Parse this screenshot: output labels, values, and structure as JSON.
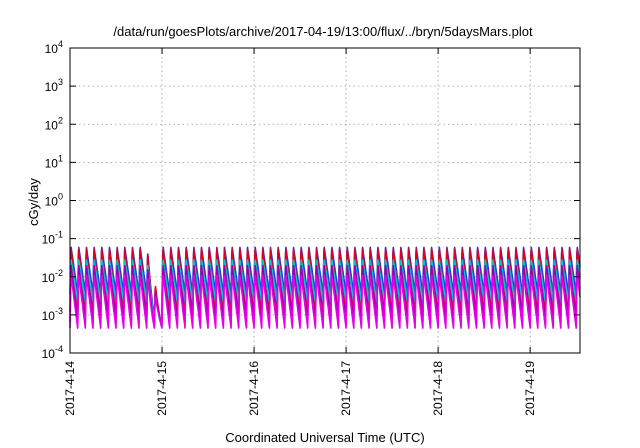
{
  "chart_data": {
    "type": "line",
    "title": "/data/run/goesPlots/archive/2017-04-19/13:00/flux/../bryn/5daysMars.plot",
    "xlabel": "Coordinated Universal Time (UTC)",
    "ylabel": "cGy/day",
    "yscale": "log",
    "ylim": [
      0.0001,
      10000
    ],
    "y_ticks": [
      {
        "base": "10",
        "exp": "-4",
        "value": 0.0001
      },
      {
        "base": "10",
        "exp": "-3",
        "value": 0.001
      },
      {
        "base": "10",
        "exp": "-2",
        "value": 0.01
      },
      {
        "base": "10",
        "exp": "-1",
        "value": 0.1
      },
      {
        "base": "10",
        "exp": "0",
        "value": 1
      },
      {
        "base": "10",
        "exp": "1",
        "value": 10
      },
      {
        "base": "10",
        "exp": "2",
        "value": 100
      },
      {
        "base": "10",
        "exp": "3",
        "value": 1000
      },
      {
        "base": "10",
        "exp": "4",
        "value": 10000
      }
    ],
    "xlim": [
      "2017-04-14 00:00",
      "2017-04-19 13:00"
    ],
    "x_ticks": [
      "2017-4-14",
      "2017-4-15",
      "2017-4-16",
      "2017-4-17",
      "2017-4-18",
      "2017-4-19"
    ],
    "grid": true,
    "cycle_hours": 2,
    "series": [
      {
        "color": "#1e3cf0",
        "peak": 0.065,
        "trough": 0.0035
      },
      {
        "color": "#e0001a",
        "peak": 0.06,
        "trough": 0.0012
      },
      {
        "color": "#00c8c8",
        "peak": 0.03,
        "trough": 0.0022
      },
      {
        "color": "#9c00b4",
        "peak": 0.022,
        "trough": 0.00065
      },
      {
        "color": "#e600e6",
        "peak": 0.012,
        "trough": 0.00045
      }
    ],
    "anomaly": {
      "start": "2017-04-14 20:00",
      "end": "2017-04-15 00:00",
      "minimum": 0.00045
    }
  }
}
